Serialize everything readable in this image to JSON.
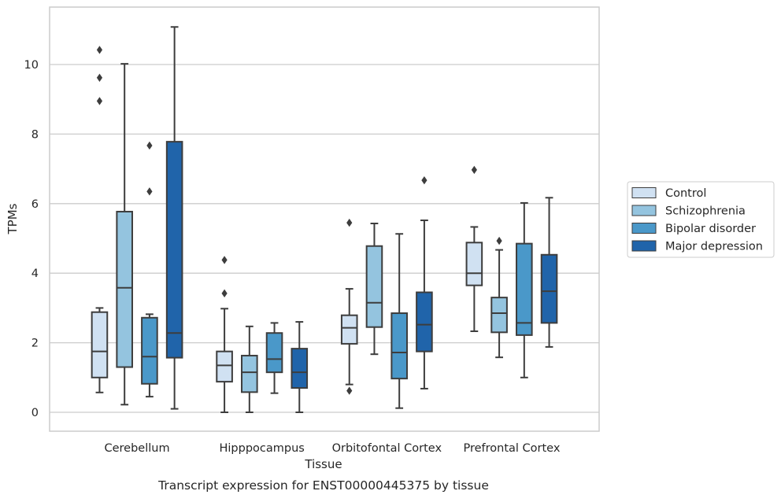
{
  "chart_data": {
    "type": "box",
    "title": "Transcript expression for ENST00000445375 by tissue",
    "xlabel": "Tissue",
    "ylabel": "TPMs",
    "ylim": [
      -0.5,
      11.5
    ],
    "yticks": [
      0,
      2,
      4,
      6,
      8,
      10
    ],
    "grid": "horizontal",
    "legend_position": "right",
    "categories": [
      "Cerebellum",
      "Hipppocampus",
      "Orbitofontal Cortex",
      "Prefrontal Cortex"
    ],
    "series": [
      {
        "name": "Control",
        "color": "#d0e1f2",
        "boxes": [
          {
            "whisker_low": 0.57,
            "q1": 1.0,
            "median": 1.75,
            "q3": 2.88,
            "whisker_high": 3.0,
            "outliers": [
              8.95,
              9.62,
              10.42
            ]
          },
          {
            "whisker_low": 0.0,
            "q1": 0.88,
            "median": 1.35,
            "q3": 1.75,
            "whisker_high": 2.98,
            "outliers": [
              3.42,
              4.38
            ]
          },
          {
            "whisker_low": 0.8,
            "q1": 1.97,
            "median": 2.43,
            "q3": 2.79,
            "whisker_high": 3.55,
            "outliers": [
              0.62,
              5.45
            ]
          },
          {
            "whisker_low": 2.33,
            "q1": 3.65,
            "median": 4.0,
            "q3": 4.88,
            "whisker_high": 5.33,
            "outliers": [
              6.97
            ]
          }
        ]
      },
      {
        "name": "Schizophrenia",
        "color": "#94c4df",
        "boxes": [
          {
            "whisker_low": 0.22,
            "q1": 1.3,
            "median": 3.58,
            "q3": 5.77,
            "whisker_high": 10.02,
            "outliers": []
          },
          {
            "whisker_low": 0.0,
            "q1": 0.58,
            "median": 1.15,
            "q3": 1.63,
            "whisker_high": 2.47,
            "outliers": []
          },
          {
            "whisker_low": 1.67,
            "q1": 2.45,
            "median": 3.15,
            "q3": 4.78,
            "whisker_high": 5.43,
            "outliers": []
          },
          {
            "whisker_low": 1.58,
            "q1": 2.3,
            "median": 2.85,
            "q3": 3.3,
            "whisker_high": 4.67,
            "outliers": [
              4.93
            ]
          }
        ]
      },
      {
        "name": "Bipolar disorder",
        "color": "#4a98c9",
        "boxes": [
          {
            "whisker_low": 0.45,
            "q1": 0.82,
            "median": 1.6,
            "q3": 2.72,
            "whisker_high": 2.82,
            "outliers": [
              6.35,
              7.67
            ]
          },
          {
            "whisker_low": 0.55,
            "q1": 1.15,
            "median": 1.53,
            "q3": 2.28,
            "whisker_high": 2.57,
            "outliers": []
          },
          {
            "whisker_low": 0.12,
            "q1": 0.97,
            "median": 1.72,
            "q3": 2.85,
            "whisker_high": 5.13,
            "outliers": []
          },
          {
            "whisker_low": 1.0,
            "q1": 2.22,
            "median": 2.57,
            "q3": 4.85,
            "whisker_high": 6.02,
            "outliers": []
          }
        ]
      },
      {
        "name": "Major depression",
        "color": "#2064aa",
        "boxes": [
          {
            "whisker_low": 0.1,
            "q1": 1.57,
            "median": 2.28,
            "q3": 7.78,
            "whisker_high": 11.08,
            "outliers": []
          },
          {
            "whisker_low": 0.0,
            "q1": 0.7,
            "median": 1.15,
            "q3": 1.83,
            "whisker_high": 2.6,
            "outliers": []
          },
          {
            "whisker_low": 0.68,
            "q1": 1.75,
            "median": 2.52,
            "q3": 3.45,
            "whisker_high": 5.52,
            "outliers": [
              6.67
            ]
          },
          {
            "whisker_low": 1.88,
            "q1": 2.57,
            "median": 3.48,
            "q3": 4.53,
            "whisker_high": 6.17,
            "outliers": []
          }
        ]
      }
    ]
  }
}
